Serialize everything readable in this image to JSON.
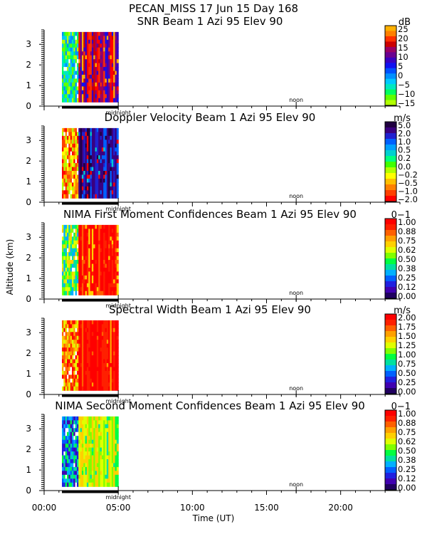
{
  "figure": {
    "header_title": "PECAN_MISS  17 Jun 15 Day 168",
    "y_axis_label": "Altitude (km)",
    "x_axis_label": "Time (UT)",
    "time_ticks": [
      "00:00",
      "05:00",
      "10:00",
      "15:00",
      "20:00"
    ],
    "midnight_label": "midnight",
    "noon_label": "noon",
    "altitude_ticks": [
      "0",
      "1",
      "2",
      "3"
    ]
  },
  "chart_data": [
    {
      "type": "heatmap",
      "title": "SNR Beam 1 Azi  95 Elev 90",
      "xlabel": "Time (UT)",
      "ylabel": "Altitude (km)",
      "xlim": [
        0,
        24
      ],
      "ylim": [
        0,
        3.7
      ],
      "data_extent": {
        "time": [
          1.2,
          5.0
        ],
        "altitude": [
          0.2,
          3.6
        ]
      },
      "colorbar": {
        "unit": "dB",
        "labels": [
          "25",
          "20",
          "15",
          "10",
          "5",
          "0",
          "−5",
          "−10",
          "−15"
        ],
        "colors": [
          "#ffb000",
          "#ff8000",
          "#ff3000",
          "#cc0000",
          "#9a0064",
          "#6a0090",
          "#3a00c0",
          "#1010f0",
          "#0050ff",
          "#0090ff",
          "#00c8ff",
          "#00e8c0",
          "#00ff60",
          "#60ff00",
          "#b0ff00"
        ]
      }
    },
    {
      "type": "heatmap",
      "title": "Doppler Velocity Beam 1 Azi  95 Elev 90",
      "xlabel": "Time (UT)",
      "ylabel": "Altitude (km)",
      "xlim": [
        0,
        24
      ],
      "ylim": [
        0,
        3.7
      ],
      "data_extent": {
        "time": [
          1.2,
          5.0
        ],
        "altitude": [
          0.2,
          3.6
        ]
      },
      "colorbar": {
        "unit": "m/s",
        "labels": [
          "5.0",
          "2.0",
          "1.0",
          "0.5",
          "0.2",
          "0.0",
          "−0.2",
          "−0.5",
          "−1.0",
          "−2.0"
        ],
        "colors": [
          "#200040",
          "#3a0080",
          "#2020d0",
          "#0060ff",
          "#00a0ff",
          "#00d0d0",
          "#00ff80",
          "#40ff00",
          "#b0ff00",
          "#ffff00",
          "#ffc000",
          "#ff8000",
          "#ff4000",
          "#ff0000"
        ]
      }
    },
    {
      "type": "heatmap",
      "title": "NIMA First Moment Confidences Beam 1 Azi  95 Elev 90",
      "xlabel": "Time (UT)",
      "ylabel": "Altitude (km)",
      "xlim": [
        0,
        24
      ],
      "ylim": [
        0,
        3.7
      ],
      "data_extent": {
        "time": [
          1.2,
          5.0
        ],
        "altitude": [
          0.2,
          3.6
        ]
      },
      "colorbar": {
        "unit": "0−1",
        "labels": [
          "1.00",
          "0.88",
          "0.75",
          "0.62",
          "0.50",
          "0.38",
          "0.25",
          "0.12",
          "0.00"
        ],
        "colors": [
          "#ff0000",
          "#ff2000",
          "#ff6000",
          "#ffa000",
          "#ffd000",
          "#e0ff00",
          "#80ff00",
          "#00ff40",
          "#00e0a0",
          "#00b0ff",
          "#0060ff",
          "#2020e0",
          "#4000b0",
          "#200060"
        ]
      }
    },
    {
      "type": "heatmap",
      "title": "Spectral Width Beam 1 Azi  95 Elev 90",
      "xlabel": "Time (UT)",
      "ylabel": "Altitude (km)",
      "xlim": [
        0,
        24
      ],
      "ylim": [
        0,
        3.7
      ],
      "data_extent": {
        "time": [
          1.2,
          5.0
        ],
        "altitude": [
          0.2,
          3.6
        ]
      },
      "colorbar": {
        "unit": "m/s",
        "labels": [
          "2.00",
          "1.75",
          "1.50",
          "1.25",
          "1.00",
          "0.75",
          "0.50",
          "0.25",
          "0.00"
        ],
        "colors": [
          "#ff0000",
          "#ff2000",
          "#ff6000",
          "#ffa000",
          "#ffd000",
          "#e0ff00",
          "#80ff00",
          "#00ff40",
          "#00e0a0",
          "#00b0ff",
          "#0060ff",
          "#2020e0",
          "#4000b0",
          "#200060"
        ]
      }
    },
    {
      "type": "heatmap",
      "title": "NIMA Second Moment Confidences Beam 1 Azi  95 Elev 90",
      "xlabel": "Time (UT)",
      "ylabel": "Altitude (km)",
      "xlim": [
        0,
        24
      ],
      "ylim": [
        0,
        3.7
      ],
      "data_extent": {
        "time": [
          1.2,
          5.0
        ],
        "altitude": [
          0.2,
          3.6
        ]
      },
      "colorbar": {
        "unit": "0−1",
        "labels": [
          "1.00",
          "0.88",
          "0.75",
          "0.62",
          "0.50",
          "0.38",
          "0.25",
          "0.12",
          "0.00"
        ],
        "colors": [
          "#ff0000",
          "#ff2000",
          "#ff6000",
          "#ffa000",
          "#ffd000",
          "#e0ff00",
          "#80ff00",
          "#00ff40",
          "#00e0a0",
          "#00b0ff",
          "#0060ff",
          "#2020e0",
          "#4000b0",
          "#200060"
        ]
      }
    }
  ]
}
